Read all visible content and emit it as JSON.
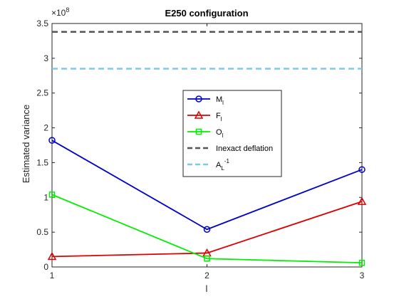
{
  "chart_data": {
    "type": "line",
    "title": "E250 configuration",
    "xlabel": "l",
    "ylabel": "Estimated variance",
    "exponent_label": "×10",
    "exponent_power": "8",
    "x": [
      1,
      2,
      3
    ],
    "xlim": [
      1,
      3
    ],
    "ylim": [
      0,
      3.5
    ],
    "x_ticks": [
      "1",
      "2",
      "3"
    ],
    "y_ticks": [
      "0",
      "0.5",
      "1",
      "1.5",
      "2",
      "2.5",
      "3",
      "3.5"
    ],
    "y_tick_values": [
      0,
      0.5,
      1,
      1.5,
      2,
      2.5,
      3,
      3.5
    ],
    "grid": false,
    "legend_position": "center",
    "series": [
      {
        "name": "M",
        "subscript": "l",
        "superscript": "",
        "color": "#0000cc",
        "marker": "circle",
        "values": [
          1.82,
          0.54,
          1.4
        ]
      },
      {
        "name": "F",
        "subscript": "l",
        "superscript": "",
        "color": "#dd0000",
        "marker": "triangle",
        "values": [
          0.15,
          0.2,
          0.94
        ]
      },
      {
        "name": "O",
        "subscript": "l",
        "superscript": "",
        "color": "#00ee00",
        "marker": "square",
        "values": [
          1.04,
          0.12,
          0.06
        ]
      }
    ],
    "reference_lines": [
      {
        "name": "Inexact deflation",
        "subscript": "",
        "superscript": "",
        "color": "#555555",
        "value": 3.38
      },
      {
        "name": "A",
        "subscript": "L",
        "superscript": "-1",
        "color": "#7ec8e8",
        "value": 2.85
      }
    ]
  }
}
